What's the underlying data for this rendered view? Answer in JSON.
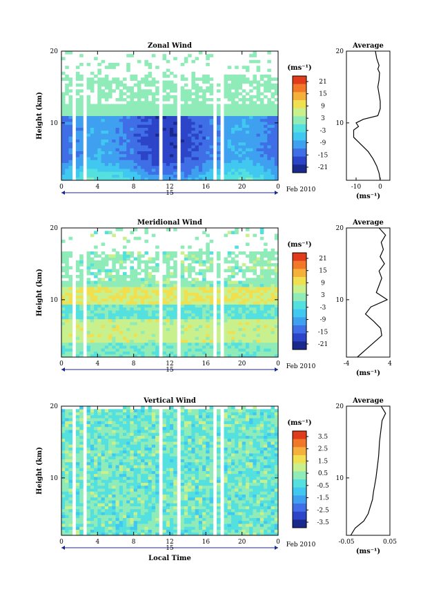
{
  "chart_data": [
    {
      "type": "heatmap",
      "title": "Zonal Wind",
      "ylabel": "Height (km)",
      "xlabel": "",
      "x_ticks": [
        "0",
        "4",
        "8",
        "12",
        "16",
        "20",
        "0"
      ],
      "date_marker": "15",
      "date_label": "Feb 2010",
      "xlim": [
        0,
        24
      ],
      "y_ticks": [
        "10",
        "20"
      ],
      "ylim": [
        2,
        20
      ],
      "colorbar": {
        "unit": "(ms⁻¹)",
        "ticks": [
          "21",
          "15",
          "9",
          "3",
          "-3",
          "-9",
          "-15",
          "-21"
        ],
        "range": [
          -24,
          24
        ]
      },
      "profile": {
        "title": "Average",
        "xlabel": "(ms⁻¹)",
        "x_ticks": [
          "-10",
          "0"
        ],
        "xlim": [
          -14,
          4
        ],
        "y_ticks": [
          "10",
          "20"
        ],
        "heights": [
          2,
          3,
          4,
          5,
          6,
          7,
          8,
          9,
          9.5,
          10,
          10.5,
          11,
          11.5,
          12,
          13,
          14,
          15,
          16,
          17,
          17.5,
          18,
          19,
          20
        ],
        "values": [
          0,
          -0.5,
          -1.5,
          -3,
          -5,
          -8,
          -11,
          -11,
          -9,
          -10,
          -7,
          -1,
          -0.5,
          0,
          0,
          -0.5,
          -1,
          -0.5,
          -0.3,
          -1,
          -0.5,
          -1.5,
          -2
        ]
      }
    },
    {
      "type": "heatmap",
      "title": "Meridional Wind",
      "ylabel": "Height (km)",
      "xlabel": "",
      "x_ticks": [
        "0",
        "4",
        "8",
        "12",
        "16",
        "20",
        "0"
      ],
      "date_marker": "15",
      "date_label": "Feb 2010",
      "xlim": [
        0,
        24
      ],
      "y_ticks": [
        "10",
        "20"
      ],
      "ylim": [
        2,
        20
      ],
      "colorbar": {
        "unit": "(ms⁻¹)",
        "ticks": [
          "21",
          "15",
          "9",
          "3",
          "-3",
          "-9",
          "-15",
          "-21"
        ],
        "range": [
          -24,
          24
        ]
      },
      "profile": {
        "title": "Average",
        "xlabel": "(ms⁻¹)",
        "x_ticks": [
          "-4",
          "4"
        ],
        "xlim": [
          -4,
          4
        ],
        "y_ticks": [
          "10",
          "20"
        ],
        "heights": [
          2,
          3,
          4,
          5,
          6,
          7,
          8,
          9,
          10,
          11,
          12,
          13,
          14,
          15,
          16,
          17,
          18,
          19,
          20
        ],
        "values": [
          -2,
          -0.5,
          1,
          2.5,
          2.3,
          1,
          -0.5,
          0.5,
          3.5,
          1.5,
          2,
          2.5,
          2,
          3,
          2.2,
          2.8,
          2.4,
          3.2,
          2
        ]
      }
    },
    {
      "type": "heatmap",
      "title": "Vertical Wind",
      "ylabel": "Height (km)",
      "xlabel": "Local Time",
      "x_ticks": [
        "0",
        "4",
        "8",
        "12",
        "16",
        "20",
        "0"
      ],
      "date_marker": "15",
      "date_label": "Feb 2010",
      "xlim": [
        0,
        24
      ],
      "y_ticks": [
        "10",
        "20"
      ],
      "ylim": [
        2,
        20
      ],
      "colorbar": {
        "unit": "(ms⁻¹)",
        "ticks": [
          "3.5",
          "2.5",
          "1.5",
          "0.5",
          "-0.5",
          "-1.5",
          "-2.5",
          "-3.5"
        ],
        "range": [
          -4,
          4
        ]
      },
      "profile": {
        "title": "Average",
        "xlabel": "(ms⁻¹)",
        "x_ticks": [
          "-0.05",
          "0.05"
        ],
        "xlim": [
          -0.05,
          0.05
        ],
        "y_ticks": [
          "10",
          "20"
        ],
        "heights": [
          2,
          3,
          4,
          5,
          6,
          7,
          8,
          9,
          10,
          11,
          12,
          13,
          14,
          15,
          16,
          17,
          18,
          19,
          20
        ],
        "values": [
          -0.04,
          -0.03,
          -0.01,
          0.0,
          0.005,
          0.01,
          0.012,
          0.015,
          0.018,
          0.02,
          0.022,
          0.024,
          0.025,
          0.026,
          0.028,
          0.03,
          0.032,
          0.04,
          0.03
        ]
      }
    }
  ]
}
